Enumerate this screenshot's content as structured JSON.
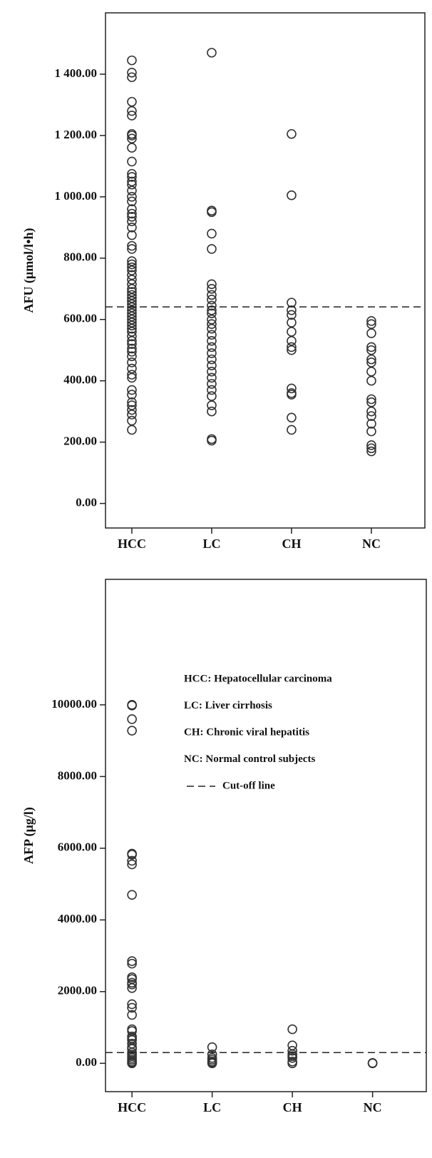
{
  "chart_data": [
    {
      "type": "scatter",
      "y_label": "AFU (μmol/l•h)",
      "categories": [
        "HCC",
        "LC",
        "CH",
        "NC"
      ],
      "values": [
        [
          1445,
          1405,
          1390,
          1310,
          1280,
          1265,
          1205,
          1200,
          1190,
          1160,
          1115,
          1075,
          1065,
          1050,
          1040,
          1020,
          1000,
          985,
          960,
          945,
          935,
          920,
          900,
          875,
          840,
          830,
          790,
          780,
          770,
          760,
          745,
          730,
          715,
          700,
          690,
          680,
          670,
          660,
          650,
          640,
          630,
          620,
          610,
          600,
          590,
          580,
          570,
          560,
          545,
          530,
          520,
          505,
          495,
          480,
          460,
          440,
          420,
          410,
          370,
          355,
          330,
          320,
          305,
          290,
          270,
          240
        ],
        [
          1470,
          955,
          950,
          880,
          830,
          715,
          700,
          680,
          665,
          645,
          630,
          620,
          600,
          585,
          570,
          550,
          530,
          510,
          490,
          470,
          450,
          430,
          410,
          390,
          370,
          350,
          320,
          300,
          210,
          205
        ],
        [
          1205,
          1005,
          655,
          630,
          615,
          590,
          560,
          530,
          510,
          500,
          375,
          360,
          355,
          280,
          240
        ],
        [
          595,
          585,
          555,
          510,
          500,
          470,
          460,
          430,
          400,
          340,
          330,
          300,
          285,
          260,
          235,
          190,
          180,
          170
        ]
      ],
      "ylim": [
        -80,
        1600
      ],
      "yticks": [
        {
          "value": 0,
          "label": "0.00"
        },
        {
          "value": 200,
          "label": "200.00"
        },
        {
          "value": 400,
          "label": "400.00"
        },
        {
          "value": 600,
          "label": "600.00"
        },
        {
          "value": 800,
          "label": "800.00"
        },
        {
          "value": 1000,
          "label": "1 000.00"
        },
        {
          "value": 1200,
          "label": "1 200.00"
        },
        {
          "value": 1400,
          "label": "1 400.00"
        }
      ],
      "cutoff": 641,
      "color": "#333333"
    },
    {
      "type": "scatter",
      "y_label": "AFP (μg/l)",
      "categories": [
        "HCC",
        "LC",
        "CH",
        "NC"
      ],
      "values": [
        [
          10000,
          9980,
          9600,
          9280,
          5850,
          5820,
          5650,
          5550,
          4700,
          2850,
          2780,
          2400,
          2350,
          2250,
          2200,
          2100,
          1650,
          1550,
          1350,
          950,
          900,
          750,
          700,
          650,
          550,
          450,
          400,
          300,
          250,
          200,
          150,
          100,
          50,
          20,
          0
        ],
        [
          450,
          250,
          150,
          100,
          50,
          20,
          0
        ],
        [
          950,
          500,
          350,
          250,
          200,
          150,
          50,
          0
        ],
        [
          10,
          5,
          0
        ]
      ],
      "ylim": [
        -790,
        13500
      ],
      "yticks": [
        {
          "value": 0,
          "label": "0.00"
        },
        {
          "value": 2000,
          "label": "2000.00"
        },
        {
          "value": 4000,
          "label": "4000.00"
        },
        {
          "value": 6000,
          "label": "6000.00"
        },
        {
          "value": 8000,
          "label": "8000.00"
        },
        {
          "value": 10000,
          "label": "10000.00"
        }
      ],
      "cutoff": 300,
      "legend": [
        "HCC: Hepatocellular carcinoma",
        "LC: Liver cirrhosis",
        "CH: Chronic viral hepatitis",
        "NC: Normal control subjects"
      ],
      "cutoff_label": "Cut-off line",
      "color": "#333333"
    }
  ]
}
